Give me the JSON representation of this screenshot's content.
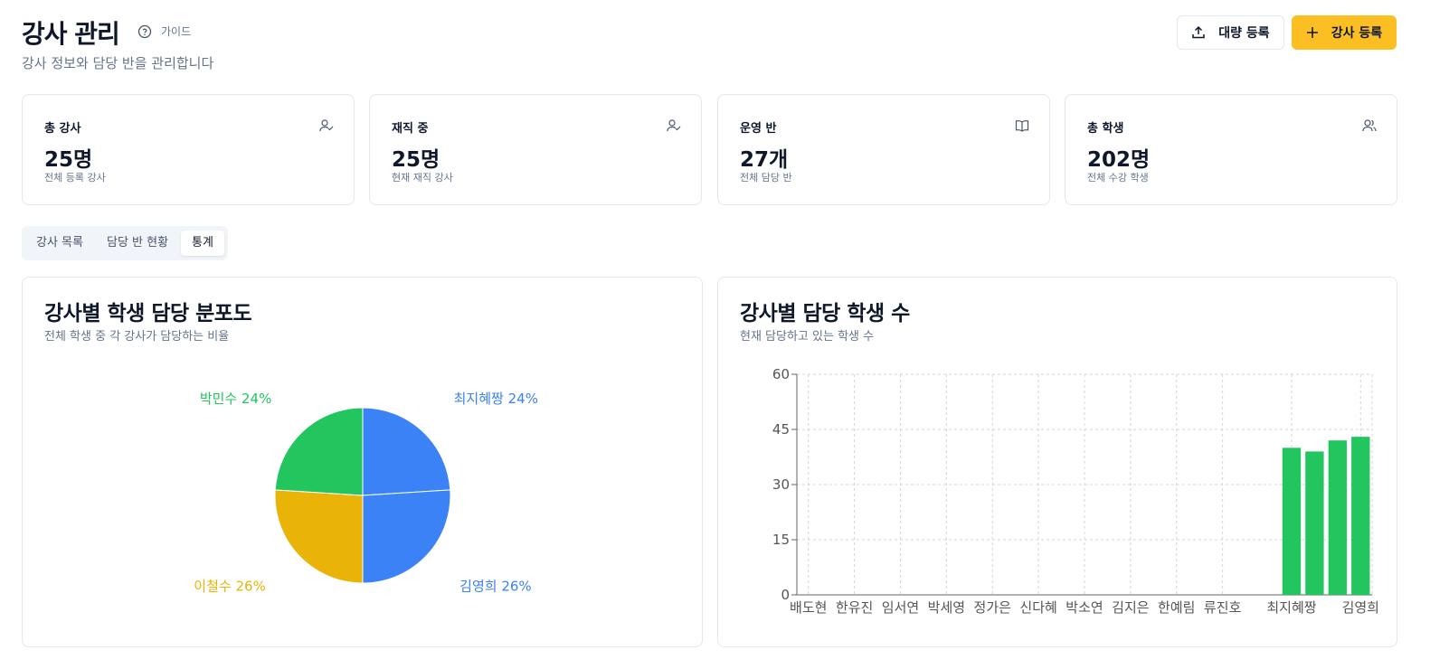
{
  "header": {
    "title": "강사 관리",
    "guide": "가이드",
    "subtitle": "강사 정보와 담당 반을 관리합니다",
    "buttons": [
      "대량 등록",
      "강사 등록"
    ]
  },
  "stats": [
    {
      "label": "총 강사",
      "value": "25명",
      "note": "전체 등록 강사"
    },
    {
      "label": "재직 중",
      "value": "25명",
      "note": "현재 재직 강사"
    },
    {
      "label": "운영 반",
      "value": "27개",
      "note": "전체 담당 반"
    },
    {
      "label": "총 학생",
      "value": "202명",
      "note": "전체 수강 학생"
    }
  ],
  "tabs": [
    "강사 목록",
    "담당 반 현황",
    "통계"
  ],
  "chart_data": [
    {
      "type": "pie",
      "title": "강사별 학생 담당 분포도",
      "subtitle": "전체 학생 중 각 강사가 담당하는 비율",
      "categories": [
        "최지혜짱",
        "김영희",
        "이철수",
        "박민수"
      ],
      "values": [
        24,
        26,
        26,
        24
      ],
      "value_labels": [
        "24%",
        "26%",
        "26%",
        "24%"
      ],
      "colors": [
        "#3b82f6",
        "#3b82f6",
        "#eab308",
        "#22c55e"
      ]
    },
    {
      "type": "bar",
      "title": "강사별 담당 학생 수",
      "subtitle": "현재 담당하고 있는 학생 수",
      "categories": [
        "배도현",
        null,
        "한유진",
        null,
        "임서연",
        null,
        "박세영",
        null,
        "정가은",
        null,
        "신다혜",
        null,
        "박소연",
        null,
        "김지은",
        null,
        "한예림",
        null,
        "류진호",
        null,
        null,
        "최지혜짱",
        null,
        null,
        "김영희"
      ],
      "values": [
        0,
        0,
        0,
        0,
        0,
        0,
        0,
        0,
        0,
        0,
        0,
        0,
        0,
        0,
        0,
        0,
        0,
        0,
        0,
        0,
        0,
        40,
        39,
        42,
        43
      ],
      "color": "#22c55e",
      "ylim": [
        0,
        60
      ],
      "yticks": [
        0,
        15,
        30,
        45,
        60
      ],
      "grid": true
    }
  ]
}
